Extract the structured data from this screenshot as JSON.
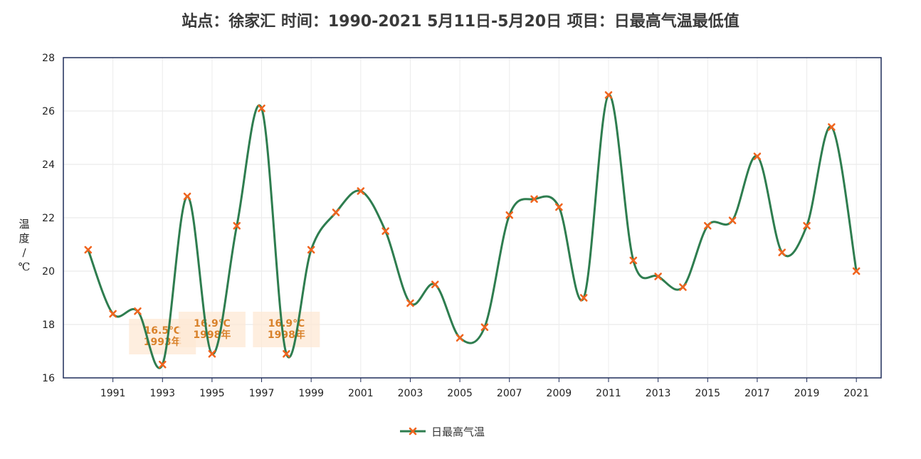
{
  "chart_data": {
    "type": "line",
    "title": "站点：徐家汇 时间：1990-2021  5月11日-5月20日 项目：日最高气温最低值",
    "ylabel_lines": [
      "温",
      "度",
      "/",
      "℃"
    ],
    "x": [
      1990,
      1991,
      1992,
      1993,
      1994,
      1995,
      1996,
      1997,
      1998,
      1999,
      2000,
      2001,
      2002,
      2003,
      2004,
      2005,
      2006,
      2007,
      2008,
      2009,
      2010,
      2011,
      2012,
      2013,
      2014,
      2015,
      2016,
      2017,
      2018,
      2019,
      2020,
      2021
    ],
    "x_tick_labels": [
      "1991",
      "1993",
      "1995",
      "1997",
      "1999",
      "2001",
      "2003",
      "2005",
      "2007",
      "2009",
      "2011",
      "2013",
      "2015",
      "2017",
      "2019",
      "2021"
    ],
    "ylim": [
      16,
      28
    ],
    "y_ticks": [
      "16",
      "18",
      "20",
      "22",
      "24",
      "26",
      "28"
    ],
    "grid": true,
    "series": [
      {
        "name": "日最高气温",
        "color": "#2e7d4f",
        "marker_color": "#f0641e",
        "values": [
          20.8,
          18.4,
          18.5,
          16.5,
          22.8,
          16.9,
          21.7,
          26.1,
          16.9,
          20.8,
          22.2,
          23.0,
          21.5,
          18.8,
          19.5,
          17.5,
          17.9,
          22.1,
          22.7,
          22.4,
          19.0,
          26.6,
          20.4,
          19.8,
          19.4,
          21.7,
          21.9,
          24.3,
          20.7,
          21.7,
          25.4,
          20.0
        ]
      }
    ],
    "annotations": [
      {
        "x": 1993,
        "line1": "16.5℃",
        "line2": "1993年"
      },
      {
        "x": 1995,
        "line1": "16.9℃",
        "line2": "1998年"
      },
      {
        "x": 1998,
        "line1": "16.9℃",
        "line2": "1998年"
      }
    ],
    "legend_position": "bottom-center"
  }
}
